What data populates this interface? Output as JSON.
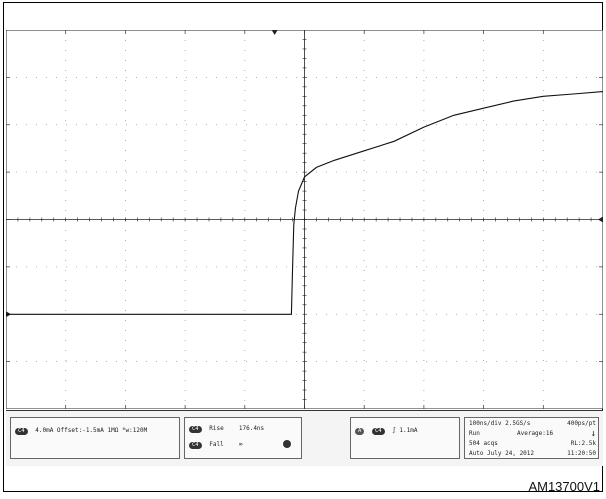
{
  "figure_id": "AM13700V1",
  "chart_data": {
    "type": "line",
    "xlabel": "",
    "ylabel": "",
    "xlim": [
      0,
      1000
    ],
    "ylim": [
      -4,
      4
    ],
    "x_unit": "ns",
    "grid": "dotted 10x8 with center crosshair",
    "series": [
      {
        "x": [
          0,
          150,
          300,
          450,
          468,
          478,
          480,
          482,
          485,
          490,
          500,
          520,
          550,
          600,
          650,
          700,
          750,
          800,
          850,
          900,
          950,
          1000
        ],
        "y": [
          -2.0,
          -2.0,
          -2.0,
          -2.0,
          -2.0,
          -2.0,
          -1.0,
          -0.1,
          0.25,
          0.6,
          0.9,
          1.1,
          1.25,
          1.45,
          1.65,
          1.95,
          2.2,
          2.35,
          2.5,
          2.6,
          2.65,
          2.7
        ]
      }
    ],
    "trigger_marker": "top ▼ near x=500",
    "ref_marker": "left ▶ at trace baseline",
    "right_marker": "right ◀ at center level"
  },
  "status": {
    "channel": {
      "tag": "C4",
      "text": "4.0mA  Offset:-1.5mA  1MΩ  ᴮw:120M"
    },
    "measurements": {
      "rise_tag": "C4",
      "rise_label": "Rise",
      "rise_value": "176.4ns",
      "fall_tag": "C4",
      "fall_label": "Fall",
      "fall_value": "∞"
    },
    "trigger": {
      "tag_a": "A",
      "tag_ch": "C4",
      "text": "∫ 1.1mA"
    },
    "timebase": {
      "line1_a": "100ns/div  2.5GS/s",
      "line1_b": "400ps/pt",
      "line2_a": "Run",
      "line2_b": "Average:16",
      "line3_a": "504 acqs",
      "line3_b": "RL:2.5k",
      "line4_a": "Auto   July 24, 2012",
      "line4_b": "11:20:50"
    }
  }
}
